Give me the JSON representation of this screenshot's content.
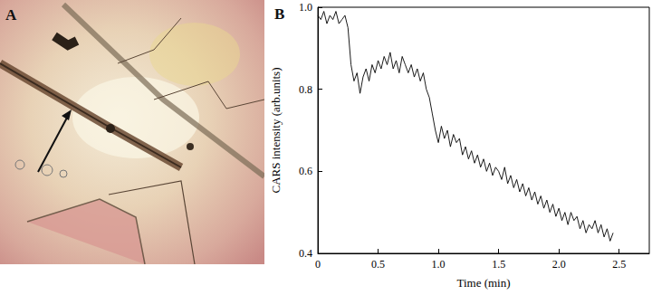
{
  "image_panel": {
    "label": "A"
  },
  "chart_data": {
    "type": "line",
    "title": "B",
    "x_label": "Time (min)",
    "y_label": "CARS intensity (arb.units)",
    "color": "#000000",
    "xlim": [
      0,
      2.75
    ],
    "xticks": [
      0,
      0.5,
      {
        "value": 1,
        "label": "1.0"
      },
      1.5,
      {
        "value": 2,
        "label": "2.0"
      },
      2.5
    ],
    "ylim": [
      0.4,
      1
    ],
    "yticks": [
      0.4,
      0.6,
      0.8,
      {
        "value": 1,
        "label": "1.0"
      }
    ],
    "grid": false,
    "x": [
      0,
      0.025,
      0.05,
      0.075,
      0.1,
      0.125,
      0.15,
      0.175,
      0.2,
      0.225,
      0.25,
      0.275,
      0.3,
      0.325,
      0.35,
      0.375,
      0.4,
      0.425,
      0.45,
      0.475,
      0.5,
      0.525,
      0.55,
      0.575,
      0.6,
      0.625,
      0.65,
      0.675,
      0.7,
      0.725,
      0.75,
      0.775,
      0.8,
      0.825,
      0.85,
      0.875,
      0.9,
      0.925,
      0.95,
      0.975,
      1.0,
      1.025,
      1.05,
      1.075,
      1.1,
      1.125,
      1.15,
      1.175,
      1.2,
      1.225,
      1.25,
      1.275,
      1.3,
      1.325,
      1.35,
      1.375,
      1.4,
      1.425,
      1.45,
      1.475,
      1.5,
      1.525,
      1.55,
      1.575,
      1.6,
      1.625,
      1.65,
      1.675,
      1.7,
      1.725,
      1.75,
      1.775,
      1.8,
      1.825,
      1.85,
      1.875,
      1.9,
      1.925,
      1.95,
      1.975,
      2.0,
      2.025,
      2.05,
      2.075,
      2.1,
      2.125,
      2.15,
      2.175,
      2.2,
      2.225,
      2.25,
      2.275,
      2.3,
      2.325,
      2.35,
      2.375,
      2.4,
      2.425,
      2.45
    ],
    "values": [
      0.98,
      0.97,
      0.99,
      0.96,
      0.98,
      0.97,
      0.99,
      0.96,
      0.97,
      0.98,
      0.95,
      0.86,
      0.82,
      0.84,
      0.79,
      0.83,
      0.85,
      0.82,
      0.86,
      0.84,
      0.87,
      0.85,
      0.88,
      0.86,
      0.89,
      0.85,
      0.87,
      0.84,
      0.88,
      0.86,
      0.84,
      0.86,
      0.83,
      0.85,
      0.82,
      0.84,
      0.8,
      0.78,
      0.74,
      0.7,
      0.67,
      0.71,
      0.68,
      0.7,
      0.66,
      0.69,
      0.67,
      0.68,
      0.64,
      0.66,
      0.63,
      0.65,
      0.62,
      0.64,
      0.61,
      0.63,
      0.6,
      0.62,
      0.59,
      0.61,
      0.6,
      0.58,
      0.61,
      0.57,
      0.59,
      0.56,
      0.58,
      0.55,
      0.57,
      0.54,
      0.56,
      0.53,
      0.55,
      0.52,
      0.54,
      0.51,
      0.53,
      0.5,
      0.52,
      0.49,
      0.51,
      0.48,
      0.5,
      0.47,
      0.5,
      0.48,
      0.49,
      0.46,
      0.48,
      0.45,
      0.47,
      0.46,
      0.48,
      0.45,
      0.47,
      0.44,
      0.46,
      0.43,
      0.45
    ]
  }
}
